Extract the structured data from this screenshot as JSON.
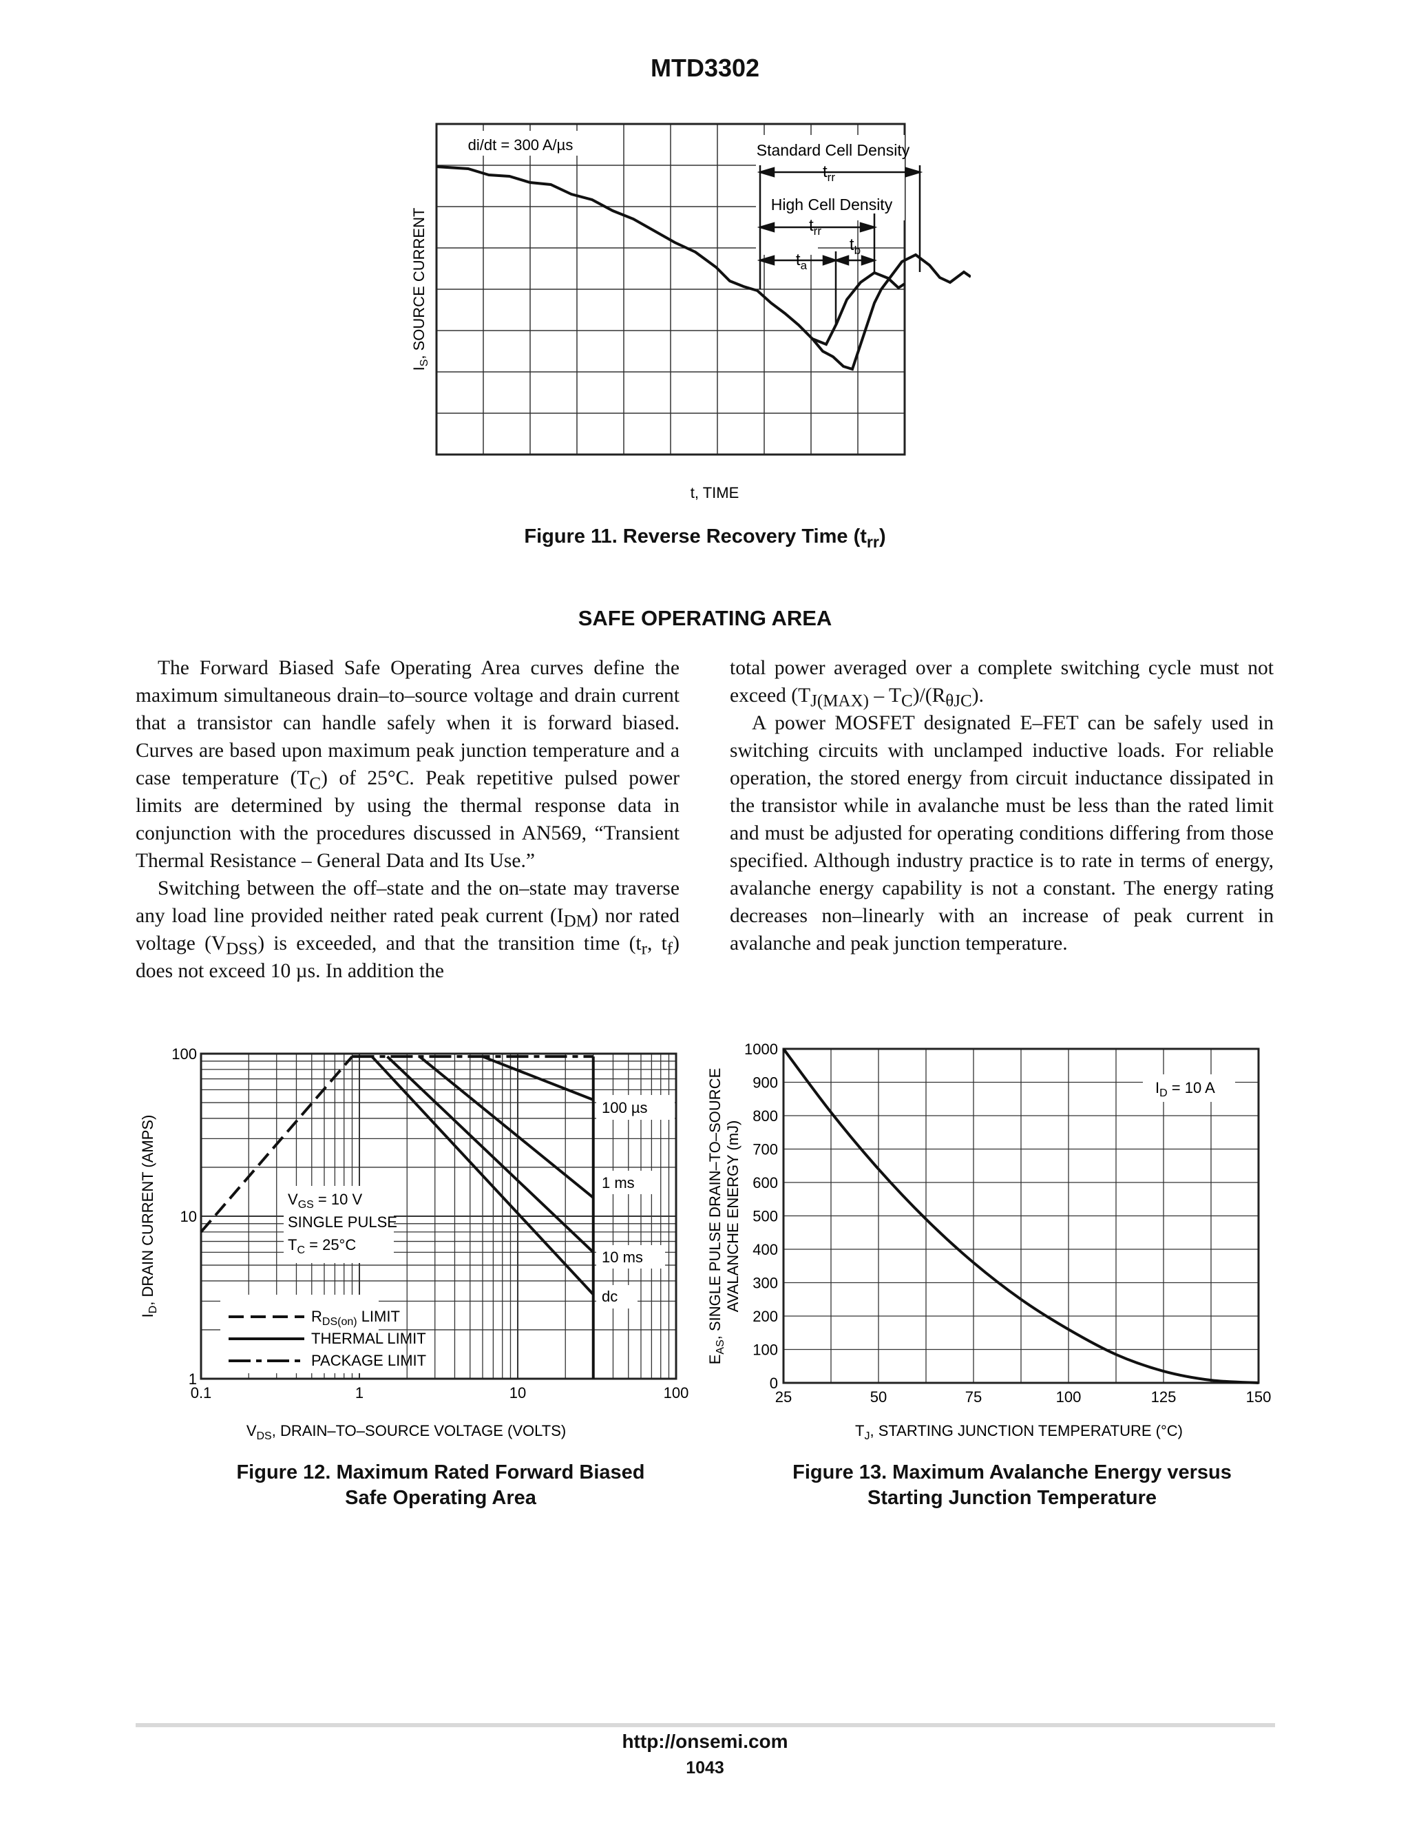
{
  "page": {
    "header": "MTD3302",
    "footer_url": "http://onsemi.com",
    "footer_page": "1043"
  },
  "fig11": {
    "caption_main": "Figure 11. Reverse Recovery Time (t",
    "caption_sub": "rr",
    "caption_end": ")",
    "didt_label": "di/dt = 300 A/µs",
    "std_label": "Standard Cell Density",
    "high_label": "High Cell Density",
    "t_letter": "t",
    "rr_sub": "rr",
    "a_sub": "a",
    "b_sub": "b",
    "ylabel_main": "I",
    "ylabel_sub": "S",
    "ylabel_rest": ", SOURCE CURRENT",
    "xlabel": "t, TIME"
  },
  "section_title": "SAFE OPERATING AREA",
  "text": {
    "l1": "The Forward Biased Safe Operating Area curves define the maximum simultaneous drain–to–source voltage and drain current that a transistor can handle safely when it is forward biased. Curves are based upon maximum peak junction temperature and a case temperature (T",
    "l1_sub": "C",
    "l1_end": ") of 25°C. Peak repetitive pulsed power limits are determined by using the thermal response data in conjunction with the procedures discussed in AN569, “Transient Thermal Resistance – General Data and Its Use.”",
    "l2a": "Switching between the off–state and the on–state may traverse any load line provided neither rated peak current (I",
    "l2_sub1": "DM",
    "l2b": ") nor rated voltage (V",
    "l2_sub2": "DSS",
    "l2c": ") is exceeded, and that the transition time (t",
    "l2_sub3": "r",
    "l2d": ", t",
    "l2_sub4": "f",
    "l2e": ") does not exceed 10 µs. In addition the",
    "r1a": "total power averaged over a complete switching cycle must not exceed (T",
    "r1_sub1": "J(MAX)",
    "r1b": " – T",
    "r1_sub2": "C",
    "r1c": ")/(R",
    "r1_sub3": "θJC",
    "r1d": ").",
    "r2": "A power MOSFET designated E–FET can be safely used in switching circuits with unclamped inductive loads. For reliable operation, the stored energy from circuit inductance dissipated in the transistor while in avalanche must be less than the rated limit and must be adjusted for operating conditions differing from those specified. Although industry practice is to rate in terms of energy, avalanche energy capability is not a constant. The energy rating decreases non–linearly with an increase of peak current in avalanche and peak junction temperature."
  },
  "fig12": {
    "caption_line1": "Figure 12. Maximum Rated Forward Biased",
    "caption_line2": "Safe Operating Area",
    "ylabel_main": "I",
    "ylabel_sub": "D",
    "ylabel_rest": ", DRAIN CURRENT (AMPS)",
    "xlabel_main": "V",
    "xlabel_sub": "DS",
    "xlabel_rest": ", DRAIN–TO–SOURCE VOLTAGE (VOLTS)",
    "vgs_main": "V",
    "vgs_sub": "GS",
    "vgs_rest": " = 10 V",
    "single_pulse": "SINGLE PULSE",
    "tc_main": "T",
    "tc_sub": "C",
    "tc_rest": " = 25°C",
    "leg_rds_main": "R",
    "leg_rds_sub": "DS(on)",
    "leg_rds_rest": " LIMIT",
    "leg_thermal": "THERMAL LIMIT",
    "leg_package": "PACKAGE LIMIT",
    "curve_labels": [
      "100 µs",
      "1 ms",
      "10 ms",
      "dc"
    ]
  },
  "fig13": {
    "caption_line1": "Figure 13. Maximum Avalanche Energy versus",
    "caption_line2": "Starting Junction Temperature",
    "ylabel_line1_main": "E",
    "ylabel_line1_sub": "AS",
    "ylabel_line1_rest": ", SINGLE PULSE DRAIN–TO–SOURCE",
    "ylabel_line2": "AVALANCHE ENERGY (mJ)",
    "xlabel_main": "T",
    "xlabel_sub": "J",
    "xlabel_rest": ", STARTING JUNCTION TEMPERATURE (°C)",
    "id_main": "I",
    "id_sub": "D",
    "id_rest": " = 10 A"
  },
  "chart_data": [
    {
      "type": "line",
      "title": "Figure 13. Maximum Avalanche Energy versus Starting Junction Temperature",
      "xlabel": "TJ, STARTING JUNCTION TEMPERATURE (°C)",
      "ylabel": "EAS, SINGLE PULSE DRAIN–TO–SOURCE AVALANCHE ENERGY (mJ)",
      "xlim": [
        25,
        150
      ],
      "ylim": [
        0,
        1000
      ],
      "x_ticks": [
        25,
        50,
        75,
        100,
        125,
        150
      ],
      "y_ticks": [
        0,
        100,
        200,
        300,
        400,
        500,
        600,
        700,
        800,
        900,
        1000
      ],
      "grid": true,
      "series": [
        {
          "name": "ID = 10 A",
          "x": [
            25,
            37.5,
            50,
            62.5,
            75,
            87.5,
            100,
            112.5,
            125,
            137.5,
            150
          ],
          "values": [
            1000,
            810,
            640,
            490,
            360,
            250,
            160,
            85,
            35,
            8,
            0
          ]
        }
      ]
    },
    {
      "type": "line",
      "title": "Figure 12. Maximum Rated Forward Biased Safe Operating Area",
      "xlabel": "VDS, DRAIN–TO–SOURCE VOLTAGE (VOLTS)",
      "ylabel": "ID, DRAIN CURRENT (AMPS)",
      "x_scale": "log",
      "y_scale": "log",
      "xlim": [
        0.1,
        100
      ],
      "ylim": [
        1,
        100
      ],
      "x_ticks": [
        0.1,
        1,
        10,
        100
      ],
      "y_ticks": [
        1,
        10,
        100
      ],
      "grid": true,
      "series": [
        {
          "name": "RDS(on) LIMIT",
          "x": [
            0.1,
            0.9
          ],
          "values": [
            8,
            96
          ]
        },
        {
          "name": "PACKAGE LIMIT",
          "x": [
            0.9,
            30
          ],
          "values": [
            96,
            96
          ]
        },
        {
          "name": "100 µs",
          "x": [
            6,
            30
          ],
          "values": [
            96,
            52
          ]
        },
        {
          "name": "1 ms",
          "x": [
            2.4,
            30
          ],
          "values": [
            96,
            13
          ]
        },
        {
          "name": "10 ms",
          "x": [
            1.5,
            30
          ],
          "values": [
            96,
            6
          ]
        },
        {
          "name": "dc",
          "x": [
            1.2,
            30
          ],
          "values": [
            96,
            3.3
          ]
        },
        {
          "name": "THERMAL LIMIT",
          "x": [
            30,
            30
          ],
          "values": [
            96,
            1
          ]
        }
      ],
      "tick_labels_x": [
        "0.1",
        "1",
        "10",
        "100"
      ],
      "tick_labels_y": [
        "1",
        "10",
        "100"
      ]
    }
  ]
}
